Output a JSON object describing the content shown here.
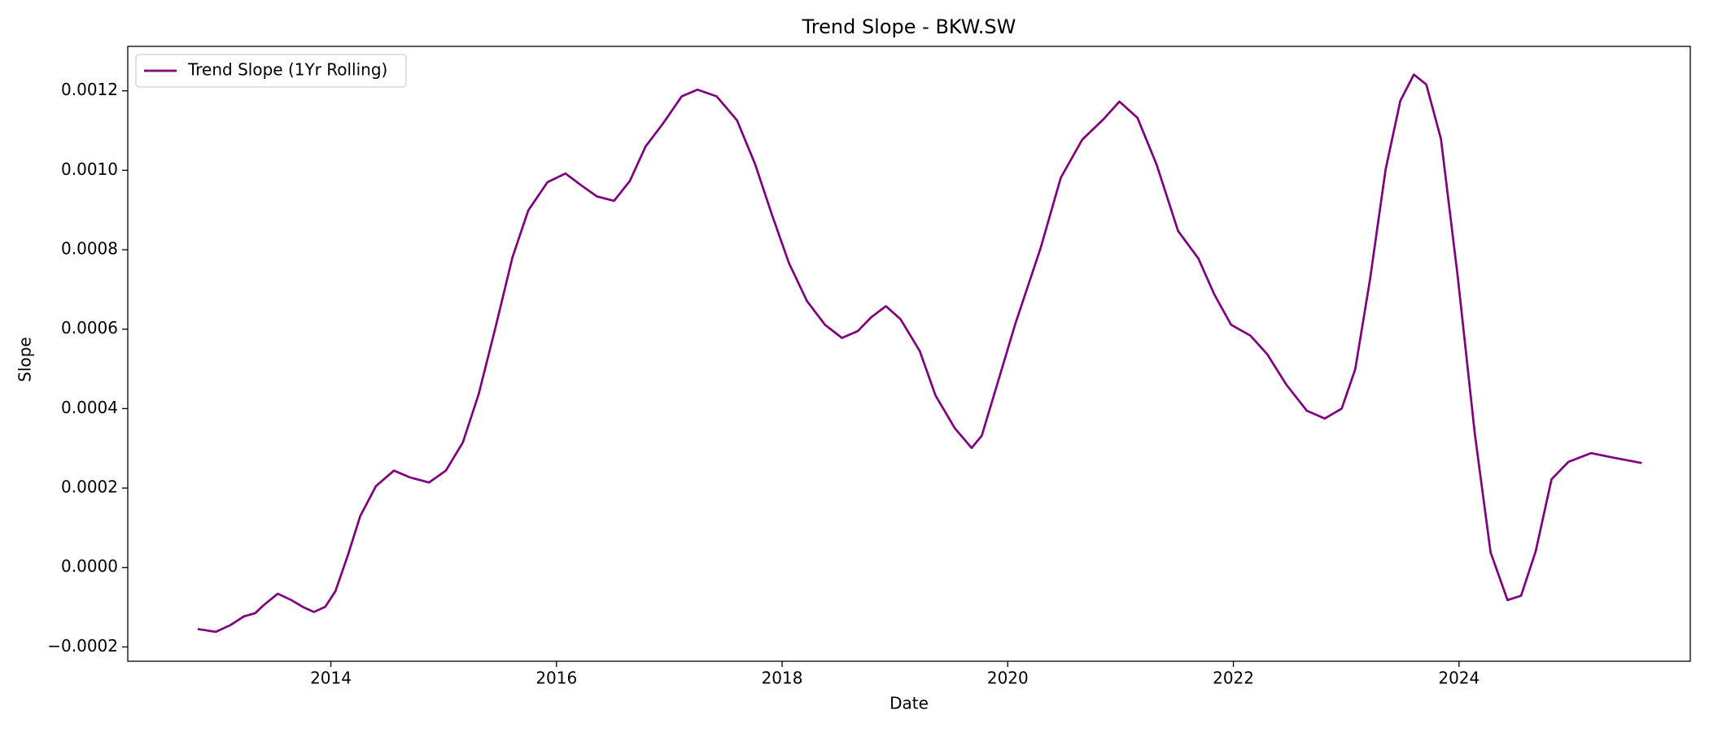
{
  "chart_data": {
    "type": "line",
    "title": "Trend Slope - BKW.SW",
    "xlabel": "Date",
    "ylabel": "Slope",
    "x": [
      2012.82,
      2012.98,
      2013.11,
      2013.23,
      2013.33,
      2013.4,
      2013.53,
      2013.65,
      2013.75,
      2013.85,
      2013.95,
      2014.04,
      2014.15,
      2014.26,
      2014.4,
      2014.56,
      2014.7,
      2014.87,
      2015.02,
      2015.17,
      2015.31,
      2015.46,
      2015.61,
      2015.75,
      2015.92,
      2016.08,
      2016.22,
      2016.36,
      2016.51,
      2016.65,
      2016.79,
      2016.95,
      2017.11,
      2017.25,
      2017.42,
      2017.6,
      2017.76,
      2017.91,
      2018.06,
      2018.22,
      2018.38,
      2018.53,
      2018.67,
      2018.79,
      2018.92,
      2019.05,
      2019.22,
      2019.36,
      2019.53,
      2019.68,
      2019.77,
      2019.9,
      2020.07,
      2020.29,
      2020.47,
      2020.66,
      2020.85,
      2020.99,
      2021.15,
      2021.32,
      2021.51,
      2021.69,
      2021.83,
      2021.98,
      2022.15,
      2022.3,
      2022.47,
      2022.65,
      2022.81,
      2022.96,
      2023.08,
      2023.21,
      2023.35,
      2023.48,
      2023.6,
      2023.71,
      2023.84,
      2023.99,
      2024.14,
      2024.28,
      2024.43,
      2024.55,
      2024.68,
      2024.82,
      2024.97,
      2025.17,
      2025.36,
      2025.62
    ],
    "series": [
      {
        "name": "Trend Slope (1Yr Rolling)",
        "color": "#800080",
        "values": [
          -0.000155,
          -0.000162,
          -0.000145,
          -0.000123,
          -0.000115,
          -9.6e-05,
          -6.6e-05,
          -8.2e-05,
          -9.9e-05,
          -0.000112,
          -9.9e-05,
          -6e-05,
          3e-05,
          0.000129,
          0.000205,
          0.000244,
          0.000227,
          0.000214,
          0.000244,
          0.000315,
          0.000436,
          0.000605,
          0.000781,
          0.000899,
          0.00097,
          0.000992,
          0.000962,
          0.000934,
          0.000923,
          0.000973,
          0.00106,
          0.00112,
          0.001186,
          0.001203,
          0.001186,
          0.001126,
          0.001016,
          0.000888,
          0.000767,
          0.000671,
          0.000611,
          0.000578,
          0.000595,
          0.00063,
          0.000658,
          0.000625,
          0.000545,
          0.000433,
          0.000351,
          0.000301,
          0.000332,
          0.000455,
          0.000616,
          0.000803,
          0.000981,
          0.001077,
          0.001129,
          0.001173,
          0.001132,
          0.001014,
          0.000847,
          0.000778,
          0.000688,
          0.000611,
          0.000584,
          0.000537,
          0.00046,
          0.000395,
          0.000375,
          0.0004,
          0.000499,
          0.000723,
          0.001003,
          0.001175,
          0.001241,
          0.001216,
          0.001079,
          0.000729,
          0.000337,
          3.8e-05,
          -8.2e-05,
          -7.1e-05,
          4.1e-05,
          0.000222,
          0.000266,
          0.000288,
          0.000277,
          0.000263
        ]
      }
    ],
    "xlim": [
      2012.2,
      2026.05
    ],
    "xticks": [
      2014,
      2016,
      2018,
      2020,
      2022,
      2024
    ],
    "ylim": [
      -0.000236,
      0.001312
    ],
    "yticks": [
      {
        "value": -0.0002,
        "label": "−0.0002"
      },
      {
        "value": 0,
        "label": "0.0000"
      },
      {
        "value": 0.0002,
        "label": "0.0002"
      },
      {
        "value": 0.0004,
        "label": "0.0004"
      },
      {
        "value": 0.0006,
        "label": "0.0006"
      },
      {
        "value": 0.0008,
        "label": "0.0008"
      },
      {
        "value": 0.001,
        "label": "0.0010"
      },
      {
        "value": 0.0012,
        "label": "0.0012"
      }
    ],
    "legend": "upper left"
  }
}
